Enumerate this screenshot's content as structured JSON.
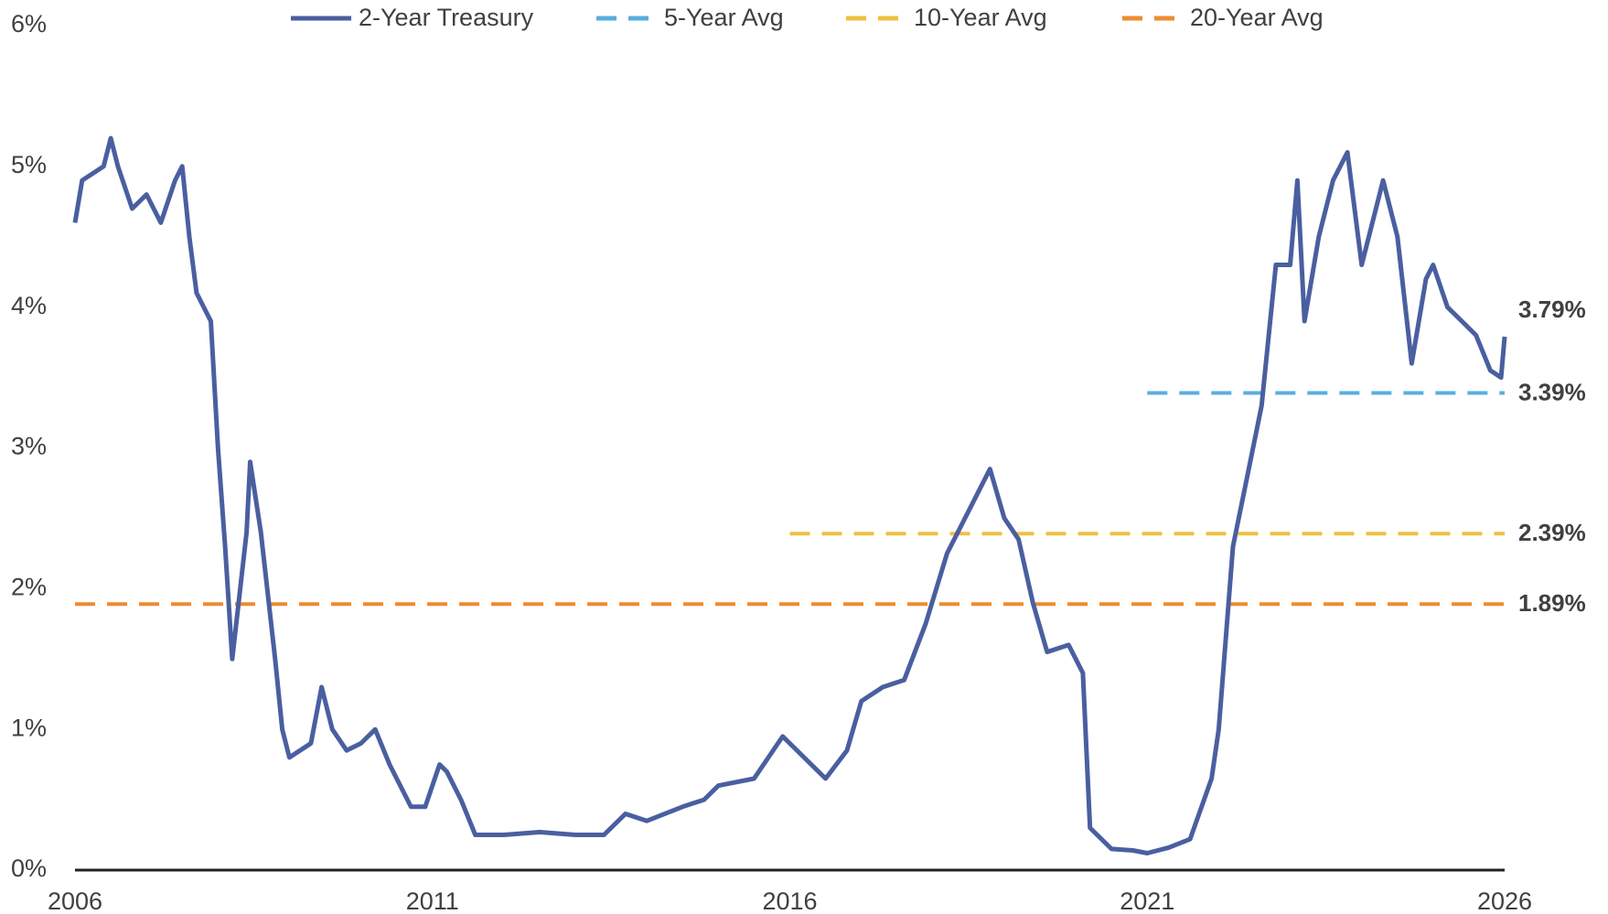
{
  "chart_data": {
    "type": "line",
    "xlim": [
      2006,
      2026
    ],
    "xticks": [
      2006,
      2011,
      2016,
      2021,
      2026
    ],
    "ylim": [
      0,
      6
    ],
    "yticks": [
      {
        "value": 0,
        "label": "0%"
      },
      {
        "value": 1,
        "label": "1%"
      },
      {
        "value": 2,
        "label": "2%"
      },
      {
        "value": 3,
        "label": "3%"
      },
      {
        "value": 4,
        "label": "4%"
      },
      {
        "value": 5,
        "label": "5%"
      },
      {
        "value": 6,
        "label": "6%"
      }
    ],
    "grid": false,
    "legend": "top",
    "series": [
      {
        "name": "2-Year Treasury",
        "color": "#4a5fa0",
        "dashed": false,
        "end_label": "3.79%",
        "x": [
          2006.0,
          2006.1,
          2006.4,
          2006.5,
          2006.6,
          2006.8,
          2007.0,
          2007.2,
          2007.4,
          2007.5,
          2007.6,
          2007.7,
          2007.9,
          2008.0,
          2008.1,
          2008.2,
          2008.4,
          2008.45,
          2008.6,
          2008.8,
          2008.9,
          2009.0,
          2009.3,
          2009.45,
          2009.6,
          2009.8,
          2010.0,
          2010.2,
          2010.4,
          2010.7,
          2010.9,
          2011.1,
          2011.2,
          2011.4,
          2011.6,
          2011.8,
          2012.0,
          2012.5,
          2013.0,
          2013.4,
          2013.7,
          2014.0,
          2014.5,
          2014.8,
          2015.0,
          2015.5,
          2015.9,
          2016.2,
          2016.5,
          2016.8,
          2017.0,
          2017.3,
          2017.6,
          2017.9,
          2018.2,
          2018.5,
          2018.8,
          2019.0,
          2019.2,
          2019.4,
          2019.6,
          2019.9,
          2020.1,
          2020.2,
          2020.5,
          2020.8,
          2021.0,
          2021.3,
          2021.6,
          2021.9,
          2022.0,
          2022.2,
          2022.4,
          2022.6,
          2022.8,
          2023.0,
          2023.1,
          2023.2,
          2023.4,
          2023.6,
          2023.8,
          2024.0,
          2024.1,
          2024.3,
          2024.5,
          2024.7,
          2024.9,
          2025.0,
          2025.2,
          2025.4,
          2025.6,
          2025.8,
          2025.95,
          2026.0
        ],
        "values": [
          4.6,
          4.9,
          5.0,
          5.2,
          5.0,
          4.7,
          4.8,
          4.6,
          4.9,
          5.0,
          4.5,
          4.1,
          3.9,
          3.0,
          2.3,
          1.5,
          2.4,
          2.9,
          2.4,
          1.5,
          1.0,
          0.8,
          0.9,
          1.3,
          1.0,
          0.85,
          0.9,
          1.0,
          0.75,
          0.45,
          0.45,
          0.75,
          0.7,
          0.5,
          0.25,
          0.25,
          0.25,
          0.27,
          0.25,
          0.25,
          0.4,
          0.35,
          0.45,
          0.5,
          0.6,
          0.65,
          0.95,
          0.8,
          0.65,
          0.85,
          1.2,
          1.3,
          1.35,
          1.75,
          2.25,
          2.55,
          2.85,
          2.5,
          2.35,
          1.9,
          1.55,
          1.6,
          1.4,
          0.3,
          0.15,
          0.14,
          0.12,
          0.16,
          0.22,
          0.65,
          1.0,
          2.3,
          2.8,
          3.3,
          4.3,
          4.3,
          4.9,
          3.9,
          4.5,
          4.9,
          5.1,
          4.3,
          4.5,
          4.9,
          4.5,
          3.6,
          4.2,
          4.3,
          4.0,
          3.9,
          3.8,
          3.55,
          3.5,
          3.79
        ]
      },
      {
        "name": "5-Year Avg",
        "color": "#5aade0",
        "dashed": true,
        "end_label": "3.39%",
        "x": [
          2021,
          2026
        ],
        "values": [
          3.39,
          3.39
        ]
      },
      {
        "name": "10-Year Avg",
        "color": "#f0c040",
        "dashed": true,
        "end_label": "2.39%",
        "x": [
          2016,
          2026
        ],
        "values": [
          2.39,
          2.39
        ]
      },
      {
        "name": "20-Year Avg",
        "color": "#f08a30",
        "dashed": true,
        "end_label": "1.89%",
        "x": [
          2006,
          2026
        ],
        "values": [
          1.89,
          1.89
        ]
      }
    ]
  }
}
